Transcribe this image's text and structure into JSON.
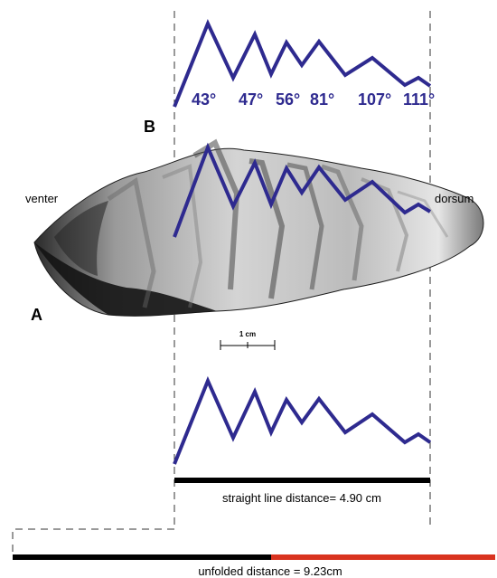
{
  "labels": {
    "panel_b": "B",
    "panel_a": "A",
    "venter": "venter",
    "dorsum": "dorsum",
    "scale_bar": "1 cm",
    "straight_caption": "straight line distance=  4.90 cm",
    "unfolded_caption": "unfolded distance =  9.23cm"
  },
  "angles": [
    "43°",
    "47°",
    "56°",
    "81°",
    "107°",
    "111°"
  ],
  "colors": {
    "profile": "#2e2a8f",
    "angle_text": "#2e2a8f",
    "straight_bar": "#000000",
    "unfolded_black": "#000000",
    "unfolded_red": "#d9331f",
    "fossil_dark": "#1c1c1c",
    "fossil_light": "#d8d8d8"
  },
  "measurements": {
    "straight_line_cm": 4.9,
    "unfolded_cm": 9.23
  }
}
